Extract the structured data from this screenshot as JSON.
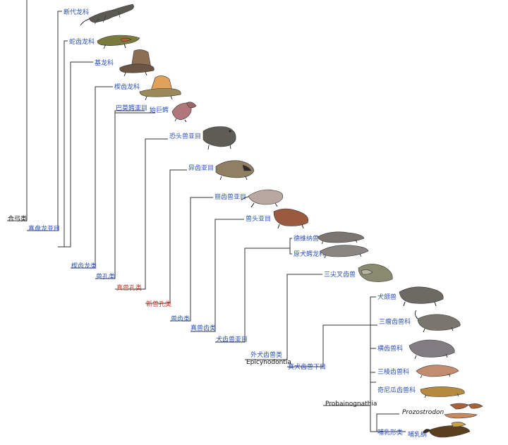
{
  "clades": {
    "amniota": "合弓类",
    "eupelycosauria": "真盘龙亚目",
    "sphenacodontia": "楔齿龙类",
    "therapsida": "兽孔类",
    "eutherapsida": "真兽孔类",
    "neotherapsida": "新兽孔类",
    "theriodontia": "兽齿类",
    "eutheriodontia": "真兽齿类",
    "cynodontia": "犬齿兽亚目",
    "epicynodontia_cn": "外犬齿兽类",
    "epicynodontia_en": "Epicynodontia",
    "eucynodontia": "真犬齿兽下目",
    "probainognathia": "Probainognathia",
    "mammaliaformes": "哺乳形类"
  },
  "taxa": {
    "varanopidae": "断代龙科",
    "ophiacodontidae": "蛇齿龙科",
    "edaphosauridae": "基龙科",
    "sphenacodontidae": "楔齿龙科",
    "biarmosuchia": "巴莫鳄亚目",
    "biarmosuchus": "始巨鳄",
    "dinocephalia": "恐头兽亚目",
    "anomodontia": "异齿亚目",
    "gorgonopsia": "丽齿兽亚目",
    "therocephalia": "兽头亚目",
    "dvinia": "德维纳兽",
    "procynosuchus": "原犬鳄龙科",
    "thrinaxodon": "三尖叉齿兽",
    "cynognathus": "犬颌兽",
    "traversodontidae": "三瘤齿兽科",
    "tritylodontidae": "横齿兽科",
    "tritheledontidae": "三棱齿兽科",
    "chiniquodontidae": "奇尼瓜齿兽科",
    "prozostrodon": "Prozostrodon",
    "mammalia": "哺乳纲"
  },
  "colors": {
    "line": "#333333",
    "label_blue": "#2b50b8",
    "label_red": "#c0392b",
    "label_black": "#111111"
  }
}
